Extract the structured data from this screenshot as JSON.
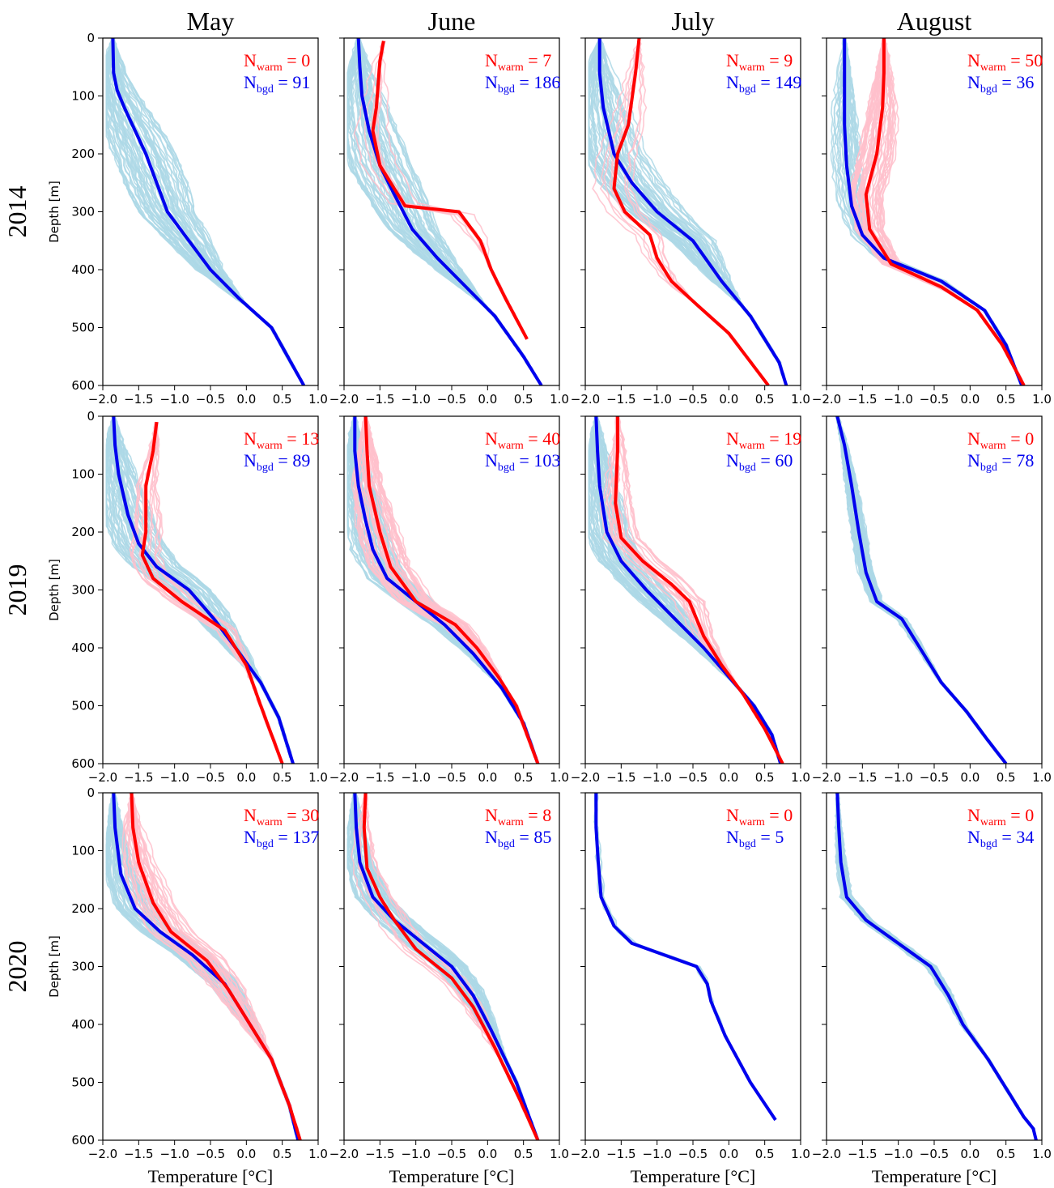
{
  "colors": {
    "warm_mean": "#ff0000",
    "bgd_mean": "#0000ee",
    "warm_ind": "#ffc0cb",
    "bgd_ind": "#add8e6"
  },
  "chart_data": {
    "type": "line",
    "grid": "off",
    "rows": [
      {
        "label": "2014",
        "ylabel": "Depth [m]"
      },
      {
        "label": "2019",
        "ylabel": "Depth [m]"
      },
      {
        "label": "2020",
        "ylabel": "Depth [m]"
      }
    ],
    "columns": [
      "May",
      "June",
      "July",
      "August"
    ],
    "xlabel": "Temperature [°C]",
    "xlim": [
      -2.0,
      1.0
    ],
    "ylim": [
      600,
      0
    ],
    "x_ticks": [
      "−2.0",
      "−1.5",
      "−1.0",
      "−0.5",
      "0.0",
      "0.5",
      "1.0"
    ],
    "y_ticks": [
      "0",
      "100",
      "200",
      "300",
      "400",
      "500",
      "600"
    ],
    "panels": [
      {
        "year": "2014",
        "month": "May",
        "n_warm": "0",
        "n_bgd": "91",
        "warm_mean": [],
        "warm_spread": 0,
        "bgd_mean": [
          [
            -1.86,
            0
          ],
          [
            -1.85,
            60
          ],
          [
            -1.8,
            90
          ],
          [
            -1.7,
            120
          ],
          [
            -1.55,
            160
          ],
          [
            -1.4,
            200
          ],
          [
            -1.25,
            250
          ],
          [
            -1.1,
            300
          ],
          [
            -0.8,
            350
          ],
          [
            -0.5,
            400
          ],
          [
            -0.1,
            450
          ],
          [
            0.35,
            500
          ],
          [
            0.8,
            600
          ]
        ],
        "bgd_spread": 0.45
      },
      {
        "year": "2014",
        "month": "June",
        "n_warm": "7",
        "n_bgd": "186",
        "warm_mean": [
          [
            -1.45,
            5
          ],
          [
            -1.5,
            40
          ],
          [
            -1.55,
            120
          ],
          [
            -1.6,
            160
          ],
          [
            -1.5,
            220
          ],
          [
            -1.25,
            270
          ],
          [
            -1.15,
            290
          ],
          [
            -0.4,
            300
          ],
          [
            -0.1,
            350
          ],
          [
            0.05,
            400
          ],
          [
            0.25,
            450
          ],
          [
            0.55,
            520
          ]
        ],
        "warm_spread": 0.25,
        "bgd_mean": [
          [
            -1.8,
            0
          ],
          [
            -1.78,
            50
          ],
          [
            -1.75,
            100
          ],
          [
            -1.65,
            160
          ],
          [
            -1.5,
            220
          ],
          [
            -1.3,
            270
          ],
          [
            -1.05,
            330
          ],
          [
            -0.7,
            380
          ],
          [
            -0.3,
            430
          ],
          [
            0.1,
            480
          ],
          [
            0.5,
            550
          ],
          [
            0.75,
            600
          ]
        ],
        "bgd_spread": 0.45
      },
      {
        "year": "2014",
        "month": "July",
        "n_warm": "9",
        "n_bgd": "149",
        "warm_mean": [
          [
            -1.25,
            0
          ],
          [
            -1.3,
            60
          ],
          [
            -1.4,
            150
          ],
          [
            -1.55,
            200
          ],
          [
            -1.6,
            260
          ],
          [
            -1.45,
            300
          ],
          [
            -1.1,
            340
          ],
          [
            -1.0,
            380
          ],
          [
            -0.8,
            420
          ],
          [
            -0.45,
            460
          ],
          [
            0.0,
            510
          ],
          [
            0.55,
            600
          ]
        ],
        "warm_spread": 0.3,
        "bgd_mean": [
          [
            -1.8,
            0
          ],
          [
            -1.8,
            60
          ],
          [
            -1.75,
            120
          ],
          [
            -1.6,
            200
          ],
          [
            -1.35,
            250
          ],
          [
            -1.0,
            300
          ],
          [
            -0.5,
            350
          ],
          [
            -0.1,
            420
          ],
          [
            0.3,
            480
          ],
          [
            0.7,
            560
          ],
          [
            0.8,
            600
          ]
        ],
        "bgd_spread": 0.45
      },
      {
        "year": "2014",
        "month": "August",
        "n_warm": "50",
        "n_bgd": "36",
        "warm_mean": [
          [
            -1.2,
            0
          ],
          [
            -1.2,
            60
          ],
          [
            -1.22,
            120
          ],
          [
            -1.3,
            200
          ],
          [
            -1.45,
            270
          ],
          [
            -1.4,
            330
          ],
          [
            -1.1,
            390
          ],
          [
            -0.4,
            430
          ],
          [
            0.1,
            470
          ],
          [
            0.45,
            530
          ],
          [
            0.75,
            600
          ]
        ],
        "warm_spread": 0.25,
        "bgd_mean": [
          [
            -1.75,
            0
          ],
          [
            -1.75,
            80
          ],
          [
            -1.75,
            150
          ],
          [
            -1.72,
            220
          ],
          [
            -1.65,
            290
          ],
          [
            -1.5,
            340
          ],
          [
            -1.2,
            380
          ],
          [
            -0.4,
            420
          ],
          [
            0.2,
            470
          ],
          [
            0.5,
            530
          ],
          [
            0.72,
            600
          ]
        ],
        "bgd_spread": 0.2
      },
      {
        "year": "2019",
        "month": "May",
        "n_warm": "13",
        "n_bgd": "89",
        "warm_mean": [
          [
            -1.25,
            10
          ],
          [
            -1.3,
            60
          ],
          [
            -1.4,
            120
          ],
          [
            -1.4,
            200
          ],
          [
            -1.45,
            240
          ],
          [
            -1.3,
            280
          ],
          [
            -0.9,
            320
          ],
          [
            -0.3,
            370
          ],
          [
            0.0,
            430
          ],
          [
            0.2,
            500
          ],
          [
            0.5,
            600
          ]
        ],
        "warm_spread": 0.25,
        "bgd_mean": [
          [
            -1.85,
            0
          ],
          [
            -1.83,
            50
          ],
          [
            -1.78,
            100
          ],
          [
            -1.65,
            170
          ],
          [
            -1.5,
            220
          ],
          [
            -1.25,
            260
          ],
          [
            -0.8,
            300
          ],
          [
            -0.45,
            350
          ],
          [
            -0.15,
            400
          ],
          [
            0.2,
            460
          ],
          [
            0.45,
            520
          ],
          [
            0.65,
            600
          ]
        ],
        "bgd_spread": 0.35
      },
      {
        "year": "2019",
        "month": "June",
        "n_warm": "40",
        "n_bgd": "103",
        "warm_mean": [
          [
            -1.7,
            0
          ],
          [
            -1.68,
            60
          ],
          [
            -1.65,
            120
          ],
          [
            -1.5,
            200
          ],
          [
            -1.35,
            260
          ],
          [
            -1.0,
            320
          ],
          [
            -0.45,
            360
          ],
          [
            -0.15,
            400
          ],
          [
            0.15,
            450
          ],
          [
            0.4,
            500
          ],
          [
            0.7,
            600
          ]
        ],
        "warm_spread": 0.3,
        "bgd_mean": [
          [
            -1.85,
            0
          ],
          [
            -1.85,
            60
          ],
          [
            -1.8,
            120
          ],
          [
            -1.7,
            180
          ],
          [
            -1.6,
            230
          ],
          [
            -1.4,
            280
          ],
          [
            -1.0,
            320
          ],
          [
            -0.6,
            360
          ],
          [
            -0.2,
            410
          ],
          [
            0.2,
            470
          ],
          [
            0.5,
            530
          ],
          [
            0.7,
            600
          ]
        ],
        "bgd_spread": 0.3
      },
      {
        "year": "2019",
        "month": "July",
        "n_warm": "19",
        "n_bgd": "60",
        "warm_mean": [
          [
            -1.55,
            0
          ],
          [
            -1.55,
            60
          ],
          [
            -1.58,
            150
          ],
          [
            -1.5,
            210
          ],
          [
            -1.2,
            250
          ],
          [
            -0.8,
            290
          ],
          [
            -0.55,
            320
          ],
          [
            -0.35,
            380
          ],
          [
            -0.1,
            430
          ],
          [
            0.2,
            480
          ],
          [
            0.5,
            540
          ],
          [
            0.75,
            600
          ]
        ],
        "warm_spread": 0.25,
        "bgd_mean": [
          [
            -1.85,
            0
          ],
          [
            -1.83,
            60
          ],
          [
            -1.8,
            120
          ],
          [
            -1.7,
            200
          ],
          [
            -1.5,
            250
          ],
          [
            -1.15,
            300
          ],
          [
            -0.75,
            350
          ],
          [
            -0.35,
            400
          ],
          [
            0.0,
            450
          ],
          [
            0.35,
            500
          ],
          [
            0.6,
            550
          ],
          [
            0.72,
            600
          ]
        ],
        "bgd_spread": 0.3
      },
      {
        "year": "2019",
        "month": "August",
        "n_warm": "0",
        "n_bgd": "78",
        "warm_mean": [],
        "warm_spread": 0,
        "bgd_mean": [
          [
            -1.85,
            0
          ],
          [
            -1.75,
            50
          ],
          [
            -1.65,
            120
          ],
          [
            -1.55,
            200
          ],
          [
            -1.45,
            270
          ],
          [
            -1.3,
            320
          ],
          [
            -0.95,
            350
          ],
          [
            -0.7,
            400
          ],
          [
            -0.4,
            460
          ],
          [
            -0.05,
            510
          ],
          [
            0.25,
            560
          ],
          [
            0.5,
            600
          ]
        ],
        "bgd_spread": 0.1
      },
      {
        "year": "2020",
        "month": "May",
        "n_warm": "30",
        "n_bgd": "137",
        "warm_mean": [
          [
            -1.6,
            0
          ],
          [
            -1.58,
            60
          ],
          [
            -1.5,
            120
          ],
          [
            -1.3,
            190
          ],
          [
            -1.05,
            240
          ],
          [
            -0.55,
            290
          ],
          [
            -0.25,
            340
          ],
          [
            0.05,
            400
          ],
          [
            0.35,
            460
          ],
          [
            0.6,
            540
          ],
          [
            0.75,
            600
          ]
        ],
        "warm_spread": 0.3,
        "bgd_mean": [
          [
            -1.85,
            0
          ],
          [
            -1.83,
            60
          ],
          [
            -1.75,
            140
          ],
          [
            -1.55,
            200
          ],
          [
            -1.2,
            240
          ],
          [
            -0.75,
            280
          ],
          [
            -0.3,
            330
          ],
          [
            0.05,
            400
          ],
          [
            0.35,
            460
          ],
          [
            0.6,
            540
          ],
          [
            0.72,
            600
          ]
        ],
        "bgd_spread": 0.25
      },
      {
        "year": "2020",
        "month": "June",
        "n_warm": "8",
        "n_bgd": "85",
        "warm_mean": [
          [
            -1.7,
            0
          ],
          [
            -1.72,
            60
          ],
          [
            -1.68,
            130
          ],
          [
            -1.5,
            180
          ],
          [
            -1.3,
            220
          ],
          [
            -1.0,
            270
          ],
          [
            -0.5,
            320
          ],
          [
            -0.2,
            370
          ],
          [
            0.1,
            440
          ],
          [
            0.45,
            530
          ],
          [
            0.7,
            600
          ]
        ],
        "warm_spread": 0.25,
        "bgd_mean": [
          [
            -1.85,
            0
          ],
          [
            -1.83,
            60
          ],
          [
            -1.78,
            120
          ],
          [
            -1.6,
            180
          ],
          [
            -1.3,
            220
          ],
          [
            -0.9,
            260
          ],
          [
            -0.5,
            300
          ],
          [
            -0.2,
            350
          ],
          [
            0.05,
            410
          ],
          [
            0.4,
            500
          ],
          [
            0.7,
            600
          ]
        ],
        "bgd_spread": 0.25
      },
      {
        "year": "2020",
        "month": "July",
        "n_warm": "0",
        "n_bgd": "5",
        "warm_mean": [],
        "warm_spread": 0,
        "bgd_mean": [
          [
            -1.85,
            0
          ],
          [
            -1.85,
            60
          ],
          [
            -1.82,
            120
          ],
          [
            -1.78,
            180
          ],
          [
            -1.6,
            230
          ],
          [
            -1.35,
            260
          ],
          [
            -0.9,
            280
          ],
          [
            -0.45,
            300
          ],
          [
            -0.3,
            330
          ],
          [
            -0.25,
            360
          ],
          [
            -0.05,
            420
          ],
          [
            0.3,
            500
          ],
          [
            0.65,
            565
          ]
        ],
        "bgd_spread": 0.06
      },
      {
        "year": "2020",
        "month": "August",
        "n_warm": "0",
        "n_bgd": "34",
        "warm_mean": [],
        "warm_spread": 0,
        "bgd_mean": [
          [
            -1.85,
            0
          ],
          [
            -1.83,
            60
          ],
          [
            -1.8,
            120
          ],
          [
            -1.72,
            180
          ],
          [
            -1.45,
            220
          ],
          [
            -1.0,
            260
          ],
          [
            -0.55,
            300
          ],
          [
            -0.3,
            350
          ],
          [
            -0.1,
            400
          ],
          [
            0.25,
            460
          ],
          [
            0.55,
            520
          ],
          [
            0.75,
            560
          ],
          [
            0.88,
            580
          ],
          [
            0.92,
            600
          ]
        ],
        "bgd_spread": 0.08
      }
    ]
  }
}
